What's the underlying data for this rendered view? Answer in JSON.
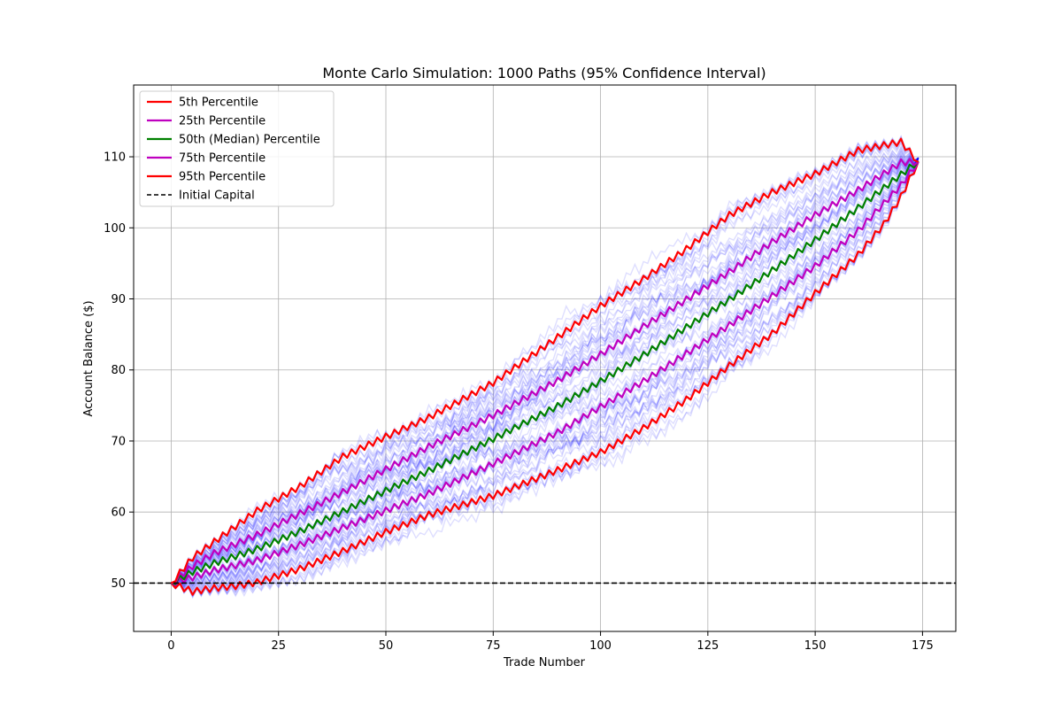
{
  "chart_data": {
    "type": "line",
    "title": "Monte Carlo Simulation: 1000 Paths (95% Confidence Interval)",
    "xlabel": "Trade Number",
    "ylabel": "Account Balance ($)",
    "xlim": [
      -8.75,
      182.75
    ],
    "ylim": [
      43.2,
      120.1
    ],
    "xticks": [
      0,
      25,
      50,
      75,
      100,
      125,
      150,
      175
    ],
    "yticks": [
      50,
      60,
      70,
      80,
      90,
      100,
      110
    ],
    "grid": true,
    "legend_position": "top-left",
    "n_trades": 174,
    "initial_capital": 50,
    "background_paths_color": "#0000ff",
    "series": [
      {
        "name": "5th Percentile",
        "color": "#ff0000",
        "x": [
          0,
          5,
          10,
          15,
          20,
          30,
          40,
          50,
          60,
          75,
          90,
          100,
          110,
          120,
          130,
          140,
          150,
          160,
          166,
          170,
          174
        ],
        "values": [
          50,
          48.8,
          49.3,
          49.6,
          50.1,
          52.0,
          54.5,
          57.2,
          59.6,
          62.3,
          65.9,
          68.4,
          71.8,
          75.8,
          80.6,
          85.1,
          90.8,
          96.2,
          100.5,
          104.4,
          109.3
        ]
      },
      {
        "name": "25th Percentile",
        "color": "#bf00bf",
        "x": [
          0,
          5,
          10,
          20,
          30,
          40,
          50,
          60,
          75,
          90,
          100,
          110,
          120,
          130,
          140,
          150,
          160,
          170,
          174
        ],
        "values": [
          50,
          50.8,
          51.8,
          53.2,
          55.4,
          57.8,
          60.2,
          62.6,
          66.8,
          71.2,
          74.8,
          78.4,
          82.3,
          86.3,
          90.4,
          94.6,
          99.6,
          106.0,
          109.3
        ]
      },
      {
        "name": "50th (Median) Percentile",
        "color": "#008000",
        "x": [
          0,
          5,
          10,
          20,
          30,
          40,
          50,
          60,
          75,
          90,
          100,
          110,
          120,
          130,
          140,
          150,
          160,
          170,
          174
        ],
        "values": [
          50,
          51.6,
          52.8,
          54.8,
          57.3,
          60.1,
          63.0,
          65.8,
          70.3,
          74.9,
          78.4,
          82.1,
          86.0,
          89.9,
          94.0,
          98.3,
          102.8,
          107.5,
          109.4
        ]
      },
      {
        "name": "75th Percentile",
        "color": "#bf00bf",
        "x": [
          0,
          5,
          10,
          20,
          30,
          40,
          50,
          60,
          75,
          90,
          100,
          110,
          120,
          130,
          140,
          150,
          160,
          170,
          174
        ],
        "values": [
          50,
          52.4,
          54.2,
          56.8,
          59.8,
          62.8,
          66.0,
          69.2,
          73.6,
          78.5,
          82.2,
          86.1,
          89.9,
          93.8,
          98.0,
          101.8,
          105.3,
          109.2,
          109.3
        ]
      },
      {
        "name": "95th Percentile",
        "color": "#ff0000",
        "x": [
          0,
          5,
          10,
          20,
          30,
          40,
          50,
          60,
          75,
          90,
          100,
          110,
          120,
          130,
          140,
          150,
          160,
          170,
          174
        ],
        "values": [
          50,
          53.6,
          55.8,
          60.2,
          63.6,
          67.8,
          70.6,
          73.3,
          78.2,
          84.6,
          89.0,
          92.8,
          97.0,
          101.8,
          105.0,
          107.6,
          110.9,
          112.1,
          109.3
        ]
      },
      {
        "name": "Initial Capital",
        "color": "#000000",
        "style": "dashed",
        "x": [
          -8.75,
          182.75
        ],
        "values": [
          50,
          50
        ]
      }
    ]
  }
}
